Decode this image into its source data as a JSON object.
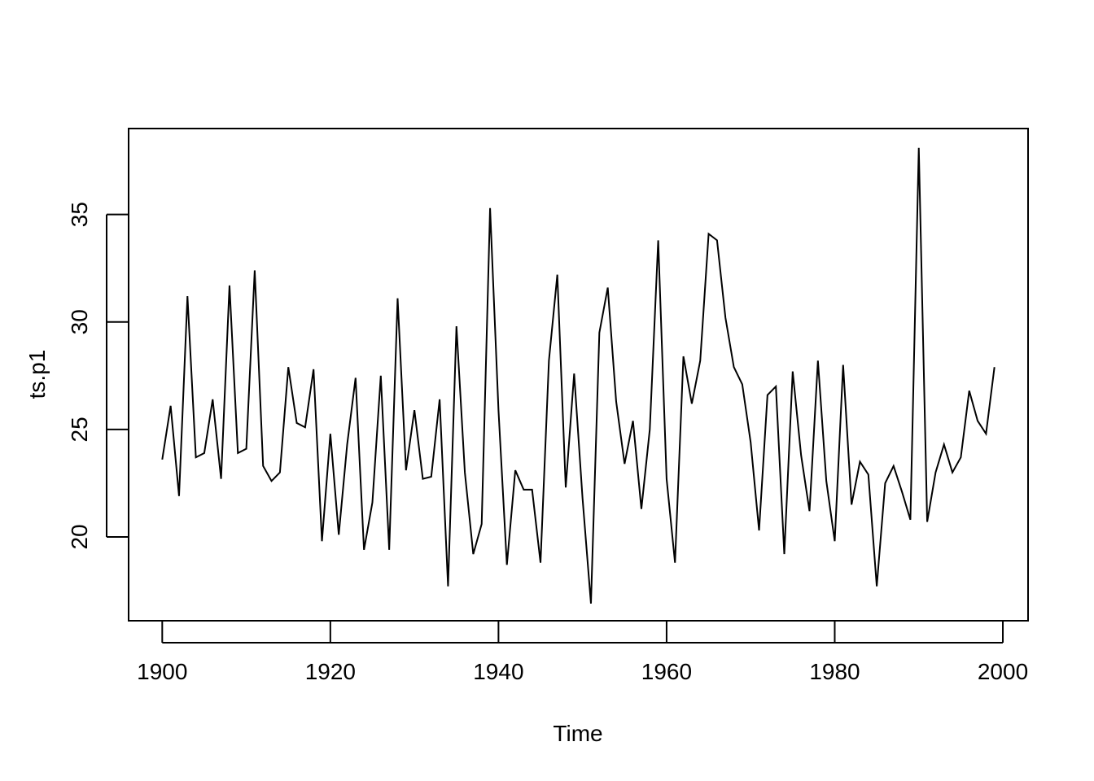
{
  "chart_data": {
    "type": "line",
    "title": "",
    "xlabel": "Time",
    "ylabel": "ts.p1",
    "x_start": 1900,
    "x_end": 1999,
    "xlim": [
      1896,
      2003
    ],
    "ylim": [
      16.1,
      39.0
    ],
    "xticks": [
      1900,
      1920,
      1940,
      1960,
      1980,
      2000
    ],
    "xtick_labels": [
      "1900",
      "1920",
      "1940",
      "1960",
      "1980",
      "2000"
    ],
    "yticks": [
      20,
      25,
      30,
      35
    ],
    "ytick_labels": [
      "20",
      "25",
      "30",
      "35"
    ],
    "grid": false,
    "legend": "none",
    "series": [
      {
        "color": "#000000",
        "values": [
          23.6,
          26.1,
          21.9,
          31.2,
          23.7,
          23.9,
          26.4,
          22.7,
          31.7,
          23.9,
          24.1,
          32.4,
          23.3,
          22.6,
          23.0,
          27.9,
          25.3,
          25.1,
          27.8,
          19.8,
          24.8,
          20.1,
          24.3,
          27.4,
          19.4,
          21.6,
          27.5,
          19.4,
          31.1,
          23.1,
          25.9,
          22.7,
          22.8,
          26.4,
          17.7,
          29.8,
          23.0,
          19.2,
          20.6,
          35.3,
          25.9,
          18.7,
          23.1,
          22.2,
          22.2,
          18.8,
          28.2,
          32.2,
          22.3,
          27.6,
          21.8,
          16.9,
          29.5,
          31.6,
          26.3,
          23.4,
          25.4,
          21.3,
          25.0,
          33.8,
          22.7,
          18.8,
          28.4,
          26.2,
          28.2,
          34.1,
          33.8,
          30.2,
          27.9,
          27.1,
          24.4,
          20.3,
          26.6,
          27.0,
          19.2,
          27.7,
          23.8,
          21.2,
          28.2,
          22.6,
          19.8,
          28.0,
          21.5,
          23.5,
          22.9,
          17.7,
          22.5,
          23.3,
          22.1,
          20.8,
          38.1,
          20.7,
          23.0,
          24.3,
          23.0,
          23.7,
          26.8,
          25.4,
          24.8,
          27.9
        ]
      }
    ]
  }
}
